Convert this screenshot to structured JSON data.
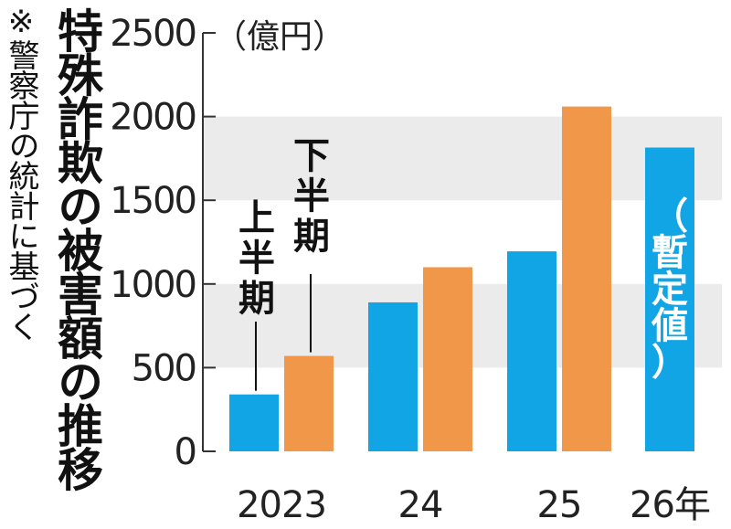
{
  "title": "特殊詐欺の被害額の推移",
  "note": "※警察庁の統計に基づく",
  "colors": {
    "first_half": "#12a5e6",
    "second_half": "#f0974a",
    "band": "#ebebeb",
    "axis": "#333333"
  },
  "chart_data": {
    "type": "bar",
    "title": "特殊詐欺の被害額の推移",
    "unit_label": "（億円）",
    "categories": [
      "2023",
      "24",
      "25",
      "26年"
    ],
    "series": [
      {
        "name": "上半期",
        "values": [
          340,
          890,
          1195,
          1815
        ]
      },
      {
        "name": "下半期",
        "values": [
          570,
          1100,
          2060,
          null
        ]
      }
    ],
    "provisional_label": "（暫定値）",
    "ylim": [
      0,
      2500
    ],
    "yticks": [
      0,
      500,
      1000,
      1500,
      2000,
      2500
    ],
    "shaded_bands": [
      [
        500,
        1000
      ],
      [
        1500,
        2000
      ]
    ],
    "legend": "inline"
  }
}
